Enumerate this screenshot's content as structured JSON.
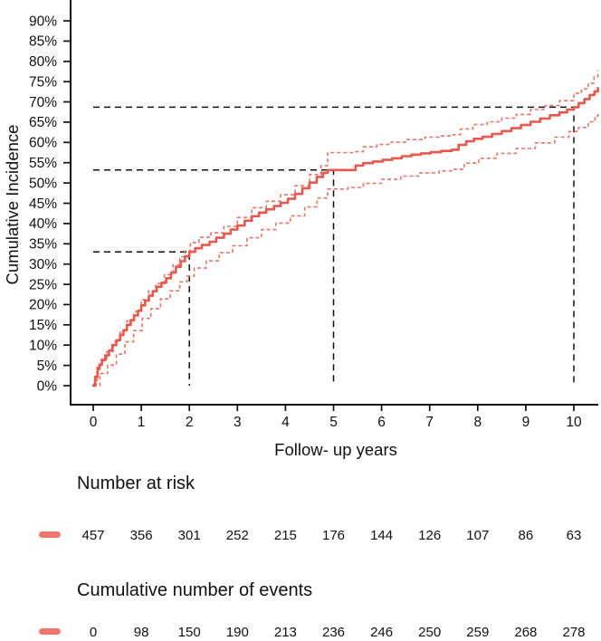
{
  "chart_data": {
    "type": "line",
    "subtype": "cumulative-incidence-step-curve-with-95ci",
    "title": "",
    "xlabel": "Follow- up years",
    "ylabel": "Cumulative Incidence",
    "xlim": [
      0,
      10.6
    ],
    "ylim_pct": [
      0,
      90
    ],
    "grid": false,
    "legend_position": "none",
    "x_ticks": [
      0,
      1,
      2,
      3,
      4,
      5,
      6,
      7,
      8,
      9,
      10
    ],
    "y_ticks_pct": [
      0,
      5,
      10,
      15,
      20,
      25,
      30,
      35,
      40,
      45,
      50,
      55,
      60,
      65,
      70,
      75,
      80,
      85,
      90
    ],
    "y_tick_suffix": "%",
    "series": [
      {
        "name": "cumulative-incidence",
        "style": "main",
        "line": "solid",
        "points": [
          [
            0,
            0
          ],
          [
            0.04,
            2.2
          ],
          [
            0.09,
            4.1
          ],
          [
            0.13,
            5.2
          ],
          [
            0.18,
            6.3
          ],
          [
            0.25,
            7.5
          ],
          [
            0.33,
            8.7
          ],
          [
            0.4,
            10
          ],
          [
            0.48,
            11.2
          ],
          [
            0.56,
            12.5
          ],
          [
            0.63,
            13.7
          ],
          [
            0.7,
            15
          ],
          [
            0.78,
            16.2
          ],
          [
            0.85,
            17.3
          ],
          [
            0.93,
            18.5
          ],
          [
            1,
            19.8
          ],
          [
            1.08,
            21
          ],
          [
            1.16,
            22.2
          ],
          [
            1.24,
            23.3
          ],
          [
            1.32,
            24.4
          ],
          [
            1.42,
            25.4
          ],
          [
            1.52,
            26.5
          ],
          [
            1.62,
            27.9
          ],
          [
            1.72,
            29.3
          ],
          [
            1.82,
            30.7
          ],
          [
            1.91,
            31.9
          ],
          [
            2,
            33
          ],
          [
            2.12,
            33.9
          ],
          [
            2.26,
            34.7
          ],
          [
            2.42,
            35.5
          ],
          [
            2.56,
            36.5
          ],
          [
            2.72,
            37.5
          ],
          [
            2.86,
            38.5
          ],
          [
            3,
            39.5
          ],
          [
            3.15,
            40.7
          ],
          [
            3.3,
            41.8
          ],
          [
            3.45,
            42.7
          ],
          [
            3.6,
            43.5
          ],
          [
            3.76,
            44.3
          ],
          [
            3.9,
            45.1
          ],
          [
            4.05,
            46.1
          ],
          [
            4.2,
            47.3
          ],
          [
            4.35,
            48.7
          ],
          [
            4.5,
            50.1
          ],
          [
            4.65,
            51.5
          ],
          [
            4.78,
            52.5
          ],
          [
            4.88,
            53.2
          ],
          [
            5.36,
            53.2
          ],
          [
            5.46,
            54.3
          ],
          [
            5.62,
            54.9
          ],
          [
            5.82,
            55.3
          ],
          [
            6.02,
            55.7
          ],
          [
            6.22,
            56.1
          ],
          [
            6.42,
            56.6
          ],
          [
            6.62,
            57
          ],
          [
            6.82,
            57.3
          ],
          [
            7.02,
            57.6
          ],
          [
            7.24,
            57.9
          ],
          [
            7.46,
            58.2
          ],
          [
            7.6,
            59.4
          ],
          [
            7.76,
            60.3
          ],
          [
            7.92,
            60.9
          ],
          [
            8.1,
            61.4
          ],
          [
            8.3,
            62.1
          ],
          [
            8.5,
            62.8
          ],
          [
            8.7,
            63.5
          ],
          [
            8.9,
            64.3
          ],
          [
            9.1,
            65.1
          ],
          [
            9.3,
            65.9
          ],
          [
            9.5,
            66.7
          ],
          [
            9.7,
            67.4
          ],
          [
            9.86,
            68.1
          ],
          [
            10,
            68.7
          ],
          [
            10.1,
            69.7
          ],
          [
            10.22,
            70.7
          ],
          [
            10.33,
            71.7
          ],
          [
            10.43,
            72.6
          ],
          [
            10.5,
            73.4
          ]
        ]
      },
      {
        "name": "upper-95ci",
        "style": "ci",
        "line": "dashed",
        "points": [
          [
            0,
            0.4
          ],
          [
            0.08,
            4.5
          ],
          [
            0.16,
            6.5
          ],
          [
            0.28,
            8.4
          ],
          [
            0.42,
            10.8
          ],
          [
            0.56,
            13.5
          ],
          [
            0.7,
            16
          ],
          [
            0.85,
            18.3
          ],
          [
            1,
            21.2
          ],
          [
            1.15,
            23.4
          ],
          [
            1.3,
            25.2
          ],
          [
            1.48,
            27.4
          ],
          [
            1.66,
            29.8
          ],
          [
            1.8,
            31.8
          ],
          [
            1.9,
            33.2
          ],
          [
            2.02,
            35.3
          ],
          [
            2.2,
            36.6
          ],
          [
            2.45,
            37.7
          ],
          [
            2.72,
            39.3
          ],
          [
            3,
            41.5
          ],
          [
            3.3,
            43.9
          ],
          [
            3.6,
            45.5
          ],
          [
            3.9,
            47.1
          ],
          [
            4.2,
            49.3
          ],
          [
            4.5,
            52.1
          ],
          [
            4.74,
            54.3
          ],
          [
            4.88,
            57.5
          ],
          [
            5.4,
            57.7
          ],
          [
            5.62,
            58.9
          ],
          [
            5.9,
            59.5
          ],
          [
            6.2,
            60.1
          ],
          [
            6.5,
            60.7
          ],
          [
            6.9,
            61.3
          ],
          [
            7.2,
            61.6
          ],
          [
            7.46,
            61.9
          ],
          [
            7.64,
            63.3
          ],
          [
            7.9,
            64.4
          ],
          [
            8.2,
            65.1
          ],
          [
            8.5,
            66
          ],
          [
            8.8,
            66.9
          ],
          [
            9.1,
            68.1
          ],
          [
            9.4,
            69.1
          ],
          [
            9.7,
            70.3
          ],
          [
            10,
            72.1
          ],
          [
            10.16,
            73.2
          ],
          [
            10.3,
            74.6
          ],
          [
            10.42,
            76.2
          ],
          [
            10.5,
            77.8
          ]
        ]
      },
      {
        "name": "lower-95ci",
        "style": "ci",
        "line": "dashed",
        "points": [
          [
            0,
            0
          ],
          [
            0.14,
            3
          ],
          [
            0.3,
            5.1
          ],
          [
            0.48,
            7.8
          ],
          [
            0.66,
            10.8
          ],
          [
            0.84,
            13.6
          ],
          [
            1.02,
            16.6
          ],
          [
            1.2,
            19
          ],
          [
            1.4,
            21.4
          ],
          [
            1.6,
            23.4
          ],
          [
            1.8,
            25.6
          ],
          [
            1.95,
            27
          ],
          [
            2.1,
            29
          ],
          [
            2.35,
            30.8
          ],
          [
            2.62,
            32.8
          ],
          [
            2.9,
            34.5
          ],
          [
            3.2,
            36.5
          ],
          [
            3.5,
            38.5
          ],
          [
            3.8,
            40.1
          ],
          [
            4.1,
            41.9
          ],
          [
            4.4,
            44.1
          ],
          [
            4.66,
            46.3
          ],
          [
            4.88,
            48.5
          ],
          [
            5.3,
            48.9
          ],
          [
            5.62,
            49.9
          ],
          [
            6,
            50.9
          ],
          [
            6.4,
            51.7
          ],
          [
            6.8,
            52.5
          ],
          [
            7.2,
            53
          ],
          [
            7.5,
            53.4
          ],
          [
            7.72,
            54.9
          ],
          [
            8.02,
            56.1
          ],
          [
            8.4,
            57.3
          ],
          [
            8.8,
            58.5
          ],
          [
            9.2,
            59.9
          ],
          [
            9.6,
            61.3
          ],
          [
            9.9,
            62.7
          ],
          [
            10.1,
            63.7
          ],
          [
            10.3,
            65.1
          ],
          [
            10.44,
            66.5
          ],
          [
            10.5,
            67.1
          ]
        ]
      }
    ],
    "reference_lines": [
      {
        "year": 2,
        "incidence_pct": 33
      },
      {
        "year": 5,
        "incidence_pct": 53.2
      },
      {
        "year": 10,
        "incidence_pct": 68.7
      }
    ],
    "number_at_risk": {
      "label": "Number at risk",
      "values": [
        457,
        356,
        301,
        252,
        215,
        176,
        144,
        126,
        107,
        86,
        63
      ]
    },
    "cumulative_events": {
      "label": "Cumulative number of events",
      "values": [
        0,
        98,
        150,
        190,
        213,
        236,
        246,
        250,
        259,
        268,
        278
      ]
    },
    "colors": {
      "curve": "#e8584c",
      "ci_dashed": "#ec7168",
      "table_marker": "#ef766c",
      "reference": "#111111",
      "text": "#111111"
    }
  }
}
